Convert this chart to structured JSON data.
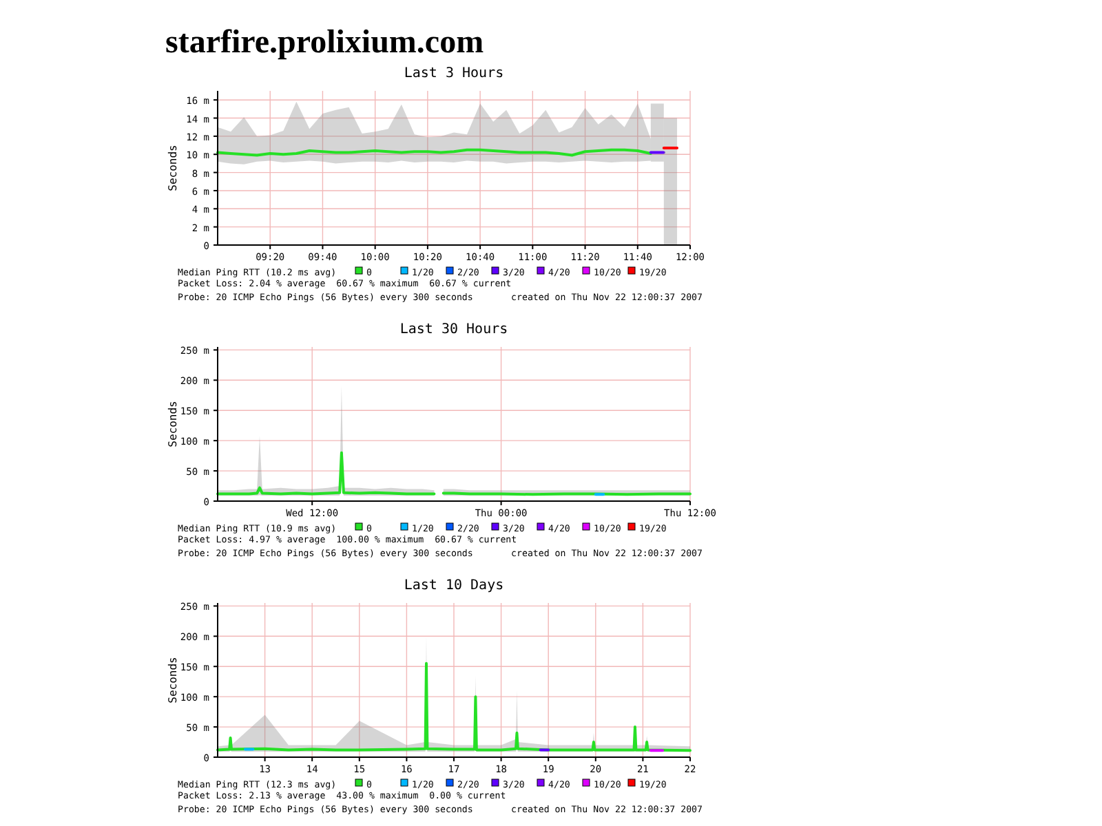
{
  "chart_data": [
    {
      "type": "other",
      "title": "starfire.prolixium.com"
    },
    {
      "type": "line",
      "title": "Last 3 Hours",
      "ylabel": "Seconds",
      "legend_title": "Median Ping RTT (10.2 ms avg)",
      "legend": "bottom",
      "grid": true,
      "xlim": [
        9.0,
        12.0
      ],
      "xticks": [
        {
          "value": 9.3333,
          "label": "09:20"
        },
        {
          "value": 9.6667,
          "label": "09:40"
        },
        {
          "value": 10,
          "label": "10:00"
        },
        {
          "value": 10.3333,
          "label": "10:20"
        },
        {
          "value": 10.6667,
          "label": "10:40"
        },
        {
          "value": 11,
          "label": "11:00"
        },
        {
          "value": 11.3333,
          "label": "11:20"
        },
        {
          "value": 11.6667,
          "label": "11:40"
        },
        {
          "value": 12,
          "label": "12:00"
        }
      ],
      "ylim": [
        0,
        17
      ],
      "yticks": [
        {
          "value": 0,
          "label": "0"
        },
        {
          "value": 2,
          "label": "2 m"
        },
        {
          "value": 4,
          "label": "4 m"
        },
        {
          "value": 6,
          "label": "6 m"
        },
        {
          "value": 8,
          "label": "8 m"
        },
        {
          "value": 10,
          "label": "10 m"
        },
        {
          "value": 12,
          "label": "12 m"
        },
        {
          "value": 14,
          "label": "14 m"
        },
        {
          "value": 16,
          "label": "16 m"
        }
      ],
      "annotations": [
        "Packet Loss: 2.04 % average  60.67 % maximum  60.67 % current",
        "Probe: 20 ICMP Echo Pings (56 Bytes) every 300 seconds",
        "created on Thu Nov 22 12:00:37 2007"
      ],
      "series": [
        {
          "name": "0",
          "color": "#26e026",
          "x": [
            9.0,
            9.083,
            9.167,
            9.25,
            9.333,
            9.417,
            9.5,
            9.583,
            9.667,
            9.75,
            9.833,
            9.917,
            10.0,
            10.083,
            10.167,
            10.25,
            10.333,
            10.417,
            10.5,
            10.583,
            10.667,
            10.75,
            10.833,
            10.917,
            11.0,
            11.083,
            11.167,
            11.25,
            11.333,
            11.417,
            11.5,
            11.583,
            11.667,
            11.75
          ],
          "values": [
            10.2,
            10.1,
            10.0,
            9.9,
            10.1,
            10.0,
            10.1,
            10.4,
            10.3,
            10.2,
            10.2,
            10.3,
            10.4,
            10.3,
            10.2,
            10.3,
            10.3,
            10.2,
            10.3,
            10.5,
            10.5,
            10.4,
            10.3,
            10.2,
            10.2,
            10.2,
            10.1,
            9.9,
            10.3,
            10.4,
            10.5,
            10.5,
            10.4,
            10.1
          ],
          "lower": [
            9.2,
            9.0,
            8.9,
            9.2,
            9.3,
            9.1,
            9.2,
            9.3,
            9.2,
            9.0,
            9.1,
            9.2,
            9.2,
            9.1,
            9.3,
            9.1,
            9.2,
            9.2,
            9.1,
            9.3,
            9.2,
            9.2,
            9.0,
            9.1,
            9.2,
            9.2,
            9.1,
            9.2,
            9.3,
            9.2,
            9.1,
            9.2,
            9.2,
            9.3
          ],
          "upper": [
            13.0,
            12.5,
            14.1,
            12.0,
            12.1,
            12.6,
            15.8,
            12.8,
            14.5,
            14.9,
            15.2,
            12.3,
            12.5,
            12.8,
            15.5,
            12.2,
            11.9,
            12.0,
            12.4,
            12.2,
            15.6,
            13.6,
            14.9,
            12.3,
            13.2,
            14.9,
            12.4,
            13.0,
            15.1,
            13.3,
            14.4,
            13.0,
            15.6,
            11.7
          ]
        },
        {
          "name": "1/20",
          "color": "#00b8ff"
        },
        {
          "name": "2/20",
          "color": "#0059ff"
        },
        {
          "name": "3/20",
          "color": "#5e00ff",
          "x": [
            11.75,
            11.833
          ],
          "values": [
            10.2,
            10.2
          ],
          "lower": [
            9.2,
            9.2
          ],
          "upper": [
            15.6,
            15.6
          ]
        },
        {
          "name": "4/20",
          "color": "#7e00ff"
        },
        {
          "name": "10/20",
          "color": "#dd00ff"
        },
        {
          "name": "19/20",
          "color": "#ff0000",
          "x": [
            11.833,
            11.917
          ],
          "values": [
            10.7,
            10.7
          ],
          "lower": [
            0,
            0
          ],
          "upper": [
            14,
            14
          ]
        }
      ]
    },
    {
      "type": "line",
      "title": "Last 30 Hours",
      "ylabel": "Seconds",
      "legend_title": "Median Ping RTT (10.9 ms avg)",
      "legend": "bottom",
      "grid": true,
      "xlim": [
        "2007-11-21T06:00",
        "2007-11-22T12:00"
      ],
      "xticks": [
        {
          "value": "2007-11-21T12:00",
          "label": "Wed 12:00"
        },
        {
          "value": "2007-11-22T00:00",
          "label": "Thu 00:00"
        },
        {
          "value": "2007-11-22T12:00",
          "label": "Thu 12:00"
        }
      ],
      "ylim": [
        0,
        255
      ],
      "yticks": [
        {
          "value": 0,
          "label": "0"
        },
        {
          "value": 50,
          "label": "50 m"
        },
        {
          "value": 100,
          "label": "100 m"
        },
        {
          "value": 150,
          "label": "150 m"
        },
        {
          "value": 200,
          "label": "200 m"
        },
        {
          "value": 250,
          "label": "250 m"
        }
      ],
      "annotations": [
        "Packet Loss: 4.97 % average  100.00 % maximum  60.67 % current",
        "Probe: 20 ICMP Echo Pings (56 Bytes) every 300 seconds",
        "created on Thu Nov 22 12:00:37 2007"
      ],
      "series": [
        {
          "name": "0",
          "color": "#26e026",
          "x": [
            "2007-11-21T06:00",
            "2007-11-21T07:00",
            "2007-11-21T08:00",
            "2007-11-21T08:30",
            "2007-11-21T08:40",
            "2007-11-21T08:50",
            "2007-11-21T10:00",
            "2007-11-21T11:00",
            "2007-11-21T12:00",
            "2007-11-21T13:00",
            "2007-11-21T13:45",
            "2007-11-21T13:52",
            "2007-11-21T14:00",
            "2007-11-21T15:00",
            "2007-11-21T16:00",
            "2007-11-21T17:00",
            "2007-11-21T18:00",
            "2007-11-21T19:00",
            "2007-11-21T19:45",
            "2007-11-21T19:55",
            "2007-11-21T20:20",
            "2007-11-21T21:00",
            "2007-11-21T22:00",
            "2007-11-22T00:00",
            "2007-11-22T02:00",
            "2007-11-22T04:00",
            "2007-11-22T06:00",
            "2007-11-22T08:00",
            "2007-11-22T10:00",
            "2007-11-22T12:00"
          ],
          "values": [
            12,
            12,
            12,
            13,
            22,
            13,
            12,
            13,
            12,
            13,
            14,
            80,
            14,
            13,
            14,
            13,
            12,
            12,
            12,
            null,
            13,
            13,
            12,
            12,
            11,
            12,
            12,
            11,
            12,
            12
          ],
          "lower": [
            9,
            9,
            9,
            9,
            10,
            9,
            9,
            9,
            9,
            9,
            9,
            40,
            9,
            9,
            9,
            9,
            9,
            9,
            9,
            null,
            9,
            9,
            9,
            9,
            9,
            9,
            9,
            9,
            9,
            9
          ],
          "upper": [
            18,
            18,
            20,
            20,
            108,
            20,
            22,
            20,
            20,
            22,
            25,
            190,
            22,
            22,
            20,
            22,
            20,
            20,
            18,
            null,
            20,
            20,
            18,
            18,
            18,
            18,
            18,
            18,
            18,
            18
          ]
        },
        {
          "name": "1/20",
          "color": "#00b8ff",
          "x": [
            "2007-11-22T06:00",
            "2007-11-22T06:30"
          ],
          "values": [
            11,
            11
          ]
        },
        {
          "name": "2/20",
          "color": "#0059ff"
        },
        {
          "name": "3/20",
          "color": "#5e00ff"
        },
        {
          "name": "4/20",
          "color": "#7e00ff"
        },
        {
          "name": "10/20",
          "color": "#dd00ff"
        },
        {
          "name": "19/20",
          "color": "#ff0000"
        }
      ]
    },
    {
      "type": "line",
      "title": "Last 10 Days",
      "ylabel": "Seconds",
      "legend_title": "Median Ping RTT (12.3 ms avg)",
      "legend": "bottom",
      "grid": true,
      "xlim": [
        "2007-11-12T12:00",
        "2007-11-22T12:00"
      ],
      "xticks": [
        {
          "value": "2007-11-13T12:00",
          "label": "13"
        },
        {
          "value": "2007-11-14T12:00",
          "label": "14"
        },
        {
          "value": "2007-11-15T12:00",
          "label": "15"
        },
        {
          "value": "2007-11-16T12:00",
          "label": "16"
        },
        {
          "value": "2007-11-17T12:00",
          "label": "17"
        },
        {
          "value": "2007-11-18T12:00",
          "label": "18"
        },
        {
          "value": "2007-11-19T12:00",
          "label": "19"
        },
        {
          "value": "2007-11-20T12:00",
          "label": "20"
        },
        {
          "value": "2007-11-21T12:00",
          "label": "21"
        },
        {
          "value": "2007-11-22T12:00",
          "label": "22"
        }
      ],
      "ylim": [
        0,
        255
      ],
      "yticks": [
        {
          "value": 0,
          "label": "0"
        },
        {
          "value": 50,
          "label": "50 m"
        },
        {
          "value": 100,
          "label": "100 m"
        },
        {
          "value": 150,
          "label": "150 m"
        },
        {
          "value": 200,
          "label": "200 m"
        },
        {
          "value": 250,
          "label": "250 m"
        }
      ],
      "annotations": [
        "Packet Loss: 2.13 % average  43.00 % maximum  0.00 % current",
        "Probe: 20 ICMP Echo Pings (56 Bytes) every 300 seconds",
        "created on Thu Nov 22 12:00:37 2007"
      ],
      "series": [
        {
          "name": "0",
          "color": "#26e026",
          "x": [
            "2007-11-12T12:00",
            "2007-11-12T18:00",
            "2007-11-12T18:30",
            "2007-11-12T19:00",
            "2007-11-13T12:00",
            "2007-11-14T00:00",
            "2007-11-14T12:00",
            "2007-11-15T00:00",
            "2007-11-15T12:00",
            "2007-11-16T12:00",
            "2007-11-16T21:30",
            "2007-11-16T22:00",
            "2007-11-16T22:30",
            "2007-11-17T12:00",
            "2007-11-17T22:30",
            "2007-11-17T23:00",
            "2007-11-17T23:30",
            "2007-11-18T12:00",
            "2007-11-18T19:30",
            "2007-11-18T20:00",
            "2007-11-18T20:30",
            "2007-11-19T12:00",
            "2007-11-20T10:30",
            "2007-11-20T11:00",
            "2007-11-20T11:30",
            "2007-11-21T07:30",
            "2007-11-21T08:00",
            "2007-11-21T08:30",
            "2007-11-21T13:30",
            "2007-11-21T14:00",
            "2007-11-21T14:30",
            "2007-11-22T12:00"
          ],
          "values": [
            12,
            13,
            32,
            13,
            14,
            12,
            13,
            12,
            12,
            13,
            14,
            155,
            14,
            13,
            13,
            100,
            12,
            12,
            14,
            40,
            14,
            12,
            12,
            25,
            12,
            12,
            50,
            12,
            12,
            25,
            12,
            11
          ],
          "lower": [
            9,
            9,
            12,
            9,
            9,
            9,
            9,
            9,
            9,
            9,
            9,
            30,
            9,
            9,
            9,
            20,
            9,
            9,
            9,
            15,
            9,
            9,
            9,
            12,
            9,
            9,
            12,
            9,
            9,
            12,
            9,
            9
          ],
          "upper": [
            18,
            20,
            35,
            20,
            70,
            20,
            20,
            20,
            60,
            20,
            25,
            200,
            25,
            20,
            20,
            135,
            20,
            20,
            30,
            110,
            25,
            20,
            20,
            40,
            20,
            20,
            52,
            20,
            20,
            35,
            20,
            18
          ]
        },
        {
          "name": "1/20",
          "color": "#00b8ff",
          "x": [
            "2007-11-13T02:00",
            "2007-11-13T06:00"
          ],
          "values": [
            13,
            13
          ]
        },
        {
          "name": "2/20",
          "color": "#0059ff"
        },
        {
          "name": "3/20",
          "color": "#5e00ff",
          "x": [
            "2007-11-19T08:00",
            "2007-11-19T12:00"
          ],
          "values": [
            12,
            12
          ]
        },
        {
          "name": "4/20",
          "color": "#7e00ff"
        },
        {
          "name": "10/20",
          "color": "#dd00ff",
          "x": [
            "2007-11-21T16:00",
            "2007-11-21T22:00"
          ],
          "values": [
            11,
            11
          ]
        },
        {
          "name": "19/20",
          "color": "#ff0000"
        }
      ]
    }
  ]
}
